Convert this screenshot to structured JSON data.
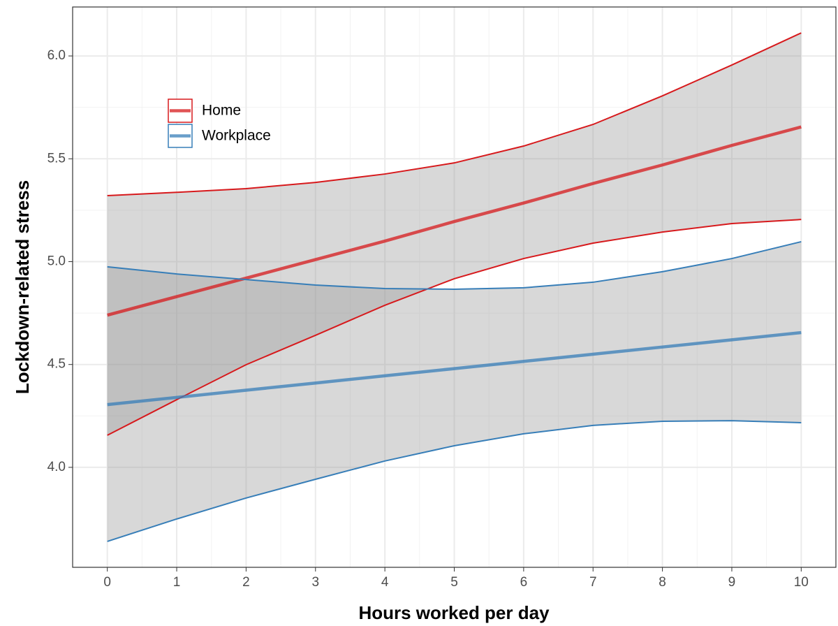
{
  "chart_data": {
    "type": "line",
    "x_label": "Hours worked per day",
    "y_label": "Lockdown-related stress",
    "x": [
      0,
      1,
      2,
      3,
      4,
      5,
      6,
      7,
      8,
      9,
      10
    ],
    "series": [
      {
        "name": "Home",
        "color": "#d7191c",
        "values": [
          4.74,
          4.83,
          4.92,
          5.01,
          5.1,
          5.195,
          5.285,
          5.38,
          5.47,
          5.565,
          5.655
        ],
        "upper": [
          5.321,
          5.337,
          5.355,
          5.385,
          5.426,
          5.48,
          5.562,
          5.667,
          5.806,
          5.956,
          6.112
        ],
        "lower": [
          4.156,
          4.329,
          4.499,
          4.642,
          4.788,
          4.917,
          5.015,
          5.09,
          5.144,
          5.185,
          5.205
        ]
      },
      {
        "name": "Workplace",
        "color": "#377eb8",
        "values": [
          4.305,
          4.34,
          4.375,
          4.41,
          4.445,
          4.48,
          4.515,
          4.55,
          4.585,
          4.62,
          4.655
        ],
        "upper": [
          4.975,
          4.94,
          4.913,
          4.886,
          4.869,
          4.866,
          4.873,
          4.9,
          4.951,
          5.015,
          5.097
        ],
        "lower": [
          3.64,
          3.749,
          3.851,
          3.942,
          4.031,
          4.105,
          4.163,
          4.204,
          4.224,
          4.227,
          4.217
        ]
      }
    ],
    "xlim": [
      -0.5,
      10.5
    ],
    "ylim": [
      3.514,
      6.238
    ],
    "xticks": [
      0,
      1,
      2,
      3,
      4,
      5,
      6,
      7,
      8,
      9,
      10
    ],
    "yticks": [
      {
        "value": 4,
        "label": "4.0"
      },
      4.5,
      {
        "value": 5,
        "label": "5.0"
      },
      5.5,
      {
        "value": 6,
        "label": "6.0"
      }
    ],
    "grid": true,
    "legend": "top-left"
  }
}
